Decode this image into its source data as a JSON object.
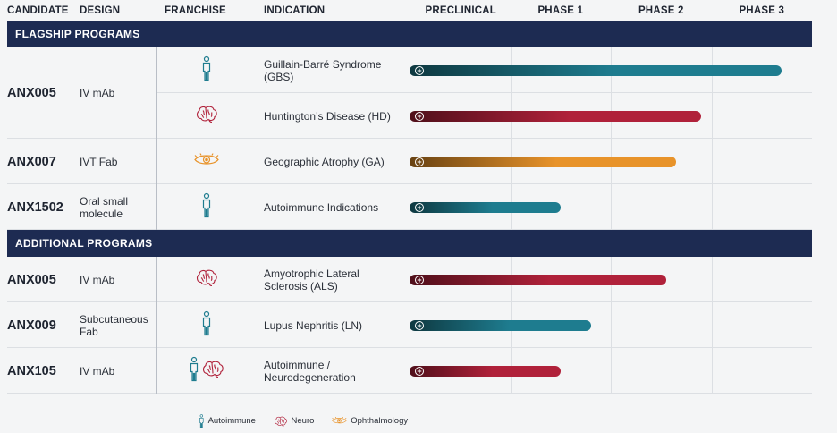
{
  "headers": {
    "candidate": "CANDIDATE",
    "design": "DESIGN",
    "franchise": "FRANCHISE",
    "indication": "INDICATION"
  },
  "chart_data": {
    "type": "bar",
    "orientation": "horizontal",
    "title": "",
    "phases": [
      "PRECLINICAL",
      "PHASE 1",
      "PHASE 2",
      "PHASE 3"
    ],
    "value_unit": "phases of development progress",
    "xlim": [
      0,
      4
    ],
    "grid": true,
    "legend_position": "bottom-center",
    "colors": {
      "autoimmune": "#1e7c8f",
      "neuro": "#b0213a",
      "ophthalmology": "#e8932a",
      "band": "#1d2b52"
    },
    "sections": [
      {
        "label": "FLAGSHIP PROGRAMS",
        "rows": [
          {
            "candidate": "ANX005",
            "design": "IV mAb",
            "franchise": [
              "autoimmune"
            ],
            "indication": "Guillain-Barré Syndrome (GBS)",
            "progress": 3.7,
            "color_key": "autoimmune"
          },
          {
            "candidate": "",
            "design": "",
            "franchise": [
              "neuro"
            ],
            "indication": "Huntington’s Disease (HD)",
            "progress": 2.9,
            "color_key": "neuro"
          },
          {
            "candidate": "ANX007",
            "design": "IVT Fab",
            "franchise": [
              "ophthalmology"
            ],
            "indication": "Geographic Atrophy (GA)",
            "progress": 2.65,
            "color_key": "ophthalmology"
          },
          {
            "candidate": "ANX1502",
            "design": "Oral small molecule",
            "franchise": [
              "autoimmune"
            ],
            "indication": "Autoimmune Indications",
            "progress": 1.5,
            "color_key": "autoimmune"
          }
        ]
      },
      {
        "label": "ADDITIONAL PROGRAMS",
        "rows": [
          {
            "candidate": "ANX005",
            "design": "IV mAb",
            "franchise": [
              "neuro"
            ],
            "indication": "Amyotrophic Lateral Sclerosis (ALS)",
            "progress": 2.55,
            "color_key": "neuro"
          },
          {
            "candidate": "ANX009",
            "design": "Subcutaneous Fab",
            "franchise": [
              "autoimmune"
            ],
            "indication": "Lupus Nephritis (LN)",
            "progress": 1.8,
            "color_key": "autoimmune"
          },
          {
            "candidate": "ANX105",
            "design": "IV mAb",
            "franchise": [
              "autoimmune",
              "neuro"
            ],
            "indication": "Autoimmune / Neurodegeneration",
            "progress": 1.5,
            "color_key": "neuro"
          }
        ]
      }
    ],
    "legend": [
      {
        "key": "autoimmune",
        "label": "Autoimmune"
      },
      {
        "key": "neuro",
        "label": "Neuro"
      },
      {
        "key": "ophthalmology",
        "label": "Ophthalmology"
      }
    ]
  },
  "icons": {
    "autoimmune": "person-icon",
    "neuro": "brain-icon",
    "ophthalmology": "eye-icon"
  }
}
